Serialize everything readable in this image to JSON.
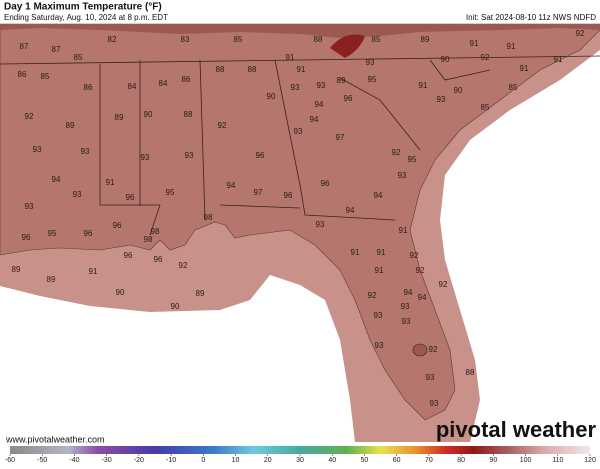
{
  "header": {
    "title": "Day 1 Maximum Temperature (°F)",
    "subtitle": "Ending Saturday, Aug. 10, 2024 at 8 p.m. EDT",
    "init": "Init: Sat 2024-08-10 11z NWS NDFD"
  },
  "footer": {
    "website": "www.pivotalweather.com",
    "logo": "pivotal weather"
  },
  "colorbar": {
    "ticks": [
      -60,
      -50,
      -40,
      -30,
      -20,
      -10,
      0,
      10,
      20,
      30,
      40,
      50,
      60,
      70,
      80,
      90,
      100,
      110,
      120
    ]
  },
  "map_labels": [
    "87",
    "82",
    "83",
    "85",
    "88",
    "85",
    "89",
    "91",
    "91",
    "92",
    "85",
    "87",
    "88",
    "88",
    "91",
    "91",
    "93",
    "92",
    "90",
    "91",
    "91",
    "89",
    "86",
    "85",
    "86",
    "84",
    "84",
    "86",
    "93",
    "93",
    "95",
    "91",
    "90",
    "85",
    "92",
    "89",
    "89",
    "90",
    "88",
    "92",
    "90",
    "94",
    "96",
    "93",
    "85",
    "93",
    "93",
    "93",
    "93",
    "96",
    "93",
    "94",
    "97",
    "92",
    "95",
    "94",
    "91",
    "95",
    "94",
    "97",
    "96",
    "96",
    "94",
    "93",
    "93",
    "93",
    "96",
    "94",
    "93",
    "96",
    "95",
    "96",
    "96",
    "98",
    "98",
    "91",
    "89",
    "91",
    "96",
    "98",
    "96",
    "92",
    "91",
    "91",
    "91",
    "92",
    "89",
    "90",
    "89",
    "90",
    "92",
    "92",
    "94",
    "92",
    "93",
    "93",
    "94",
    "93",
    "93",
    "92",
    "88",
    "93",
    "93"
  ]
}
